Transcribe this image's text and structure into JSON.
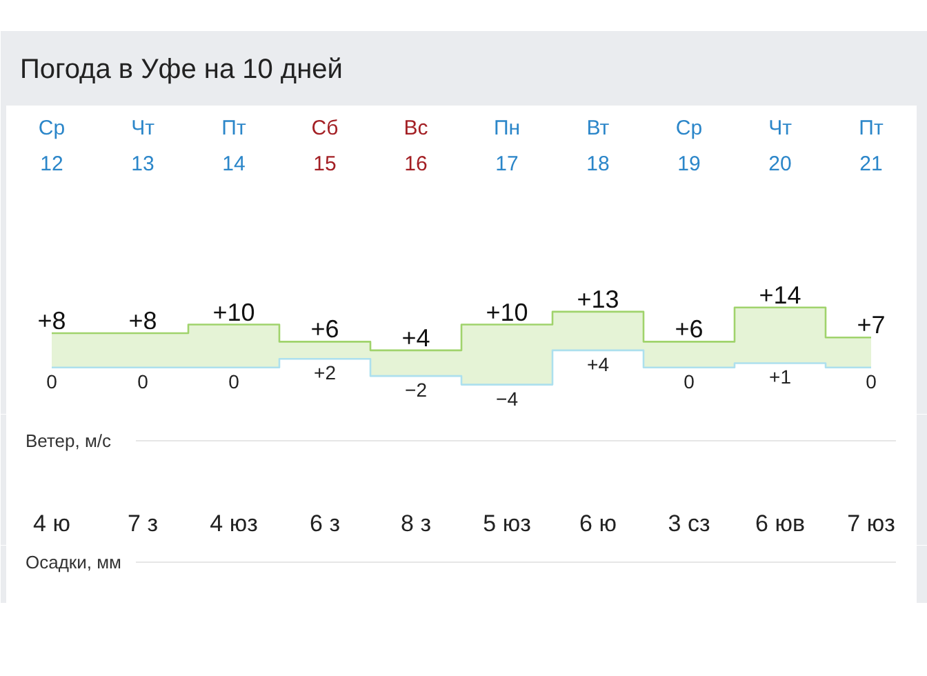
{
  "chart_data": [
    {
      "type": "step",
      "title": "Погода в Уфе на 10 дней",
      "tick_labels": "x",
      "categories": [
        "Ср\n12",
        "Чт\n13",
        "Пт\n14",
        "Сб\n15",
        "Вс\n16",
        "Пн\n17",
        "Вт\n18",
        "Ср\n19",
        "Чт\n20",
        "Пт\n21"
      ],
      "series": [
        {
          "color": "#a0d36c",
          "values": [
            8,
            8,
            10,
            6,
            4,
            10,
            13,
            6,
            14,
            7
          ],
          "value_labels": [
            "+8",
            "+8",
            "+10",
            "+6",
            "+4",
            "+10",
            "+13",
            "+6",
            "+14",
            "+7"
          ],
          "lower": [
            0,
            0,
            0,
            2,
            -2,
            -4,
            4,
            0,
            1,
            0
          ],
          "upper": [
            8,
            8,
            10,
            6,
            4,
            10,
            13,
            6,
            14,
            7
          ]
        },
        {
          "color": "#ade0ee",
          "values": [
            0,
            0,
            0,
            2,
            -2,
            -4,
            4,
            0,
            1,
            0
          ],
          "value_labels": [
            "0",
            "0",
            "0",
            "+2",
            "−2",
            "−4",
            "+4",
            "0",
            "+1",
            "0"
          ]
        }
      ]
    },
    {
      "type": "other",
      "title": "Ветер, м/с",
      "annotations": [
        "4 ю",
        "7 з",
        "4 юз",
        "6 з",
        "8 з",
        "5 юз",
        "6 ю",
        "3 сз",
        "6 юв",
        "7 юз"
      ]
    },
    {
      "type": "other",
      "title": "Осадки, мм"
    }
  ]
}
